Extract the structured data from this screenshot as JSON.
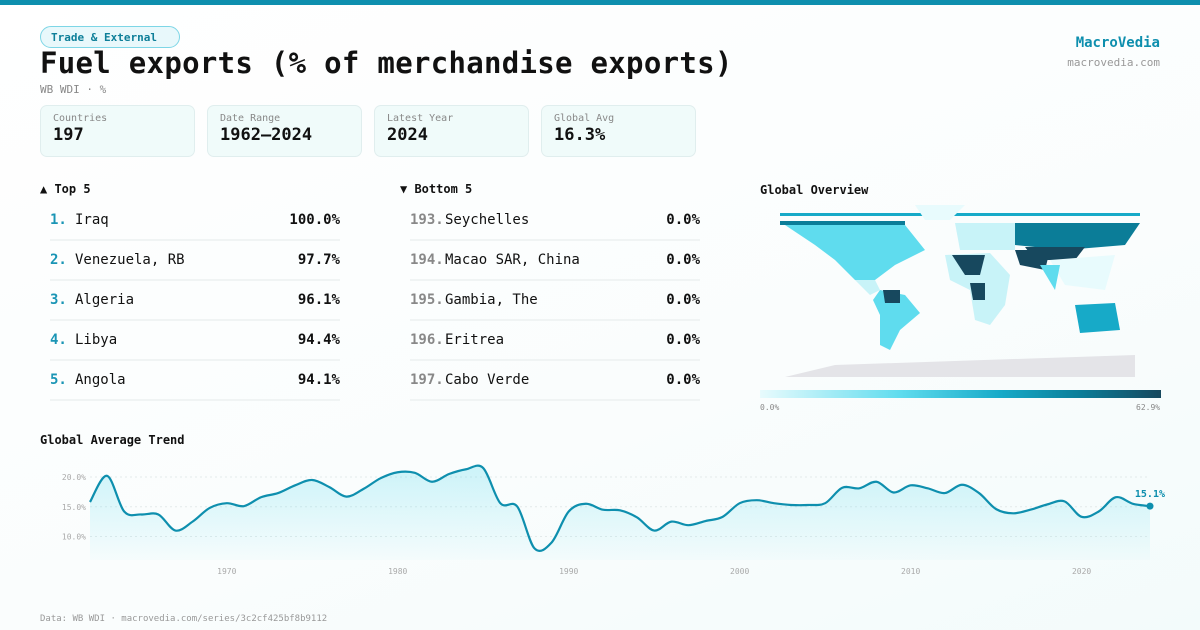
{
  "category_tag": "Trade & External",
  "title": "Fuel exports (% of merchandise exports)",
  "subtitle": "WB WDI · %",
  "brand": {
    "name": "MacroVedia",
    "url": "macrovedia.com"
  },
  "stats": [
    {
      "label": "Countries",
      "value": "197"
    },
    {
      "label": "Date Range",
      "value": "1962–2024"
    },
    {
      "label": "Latest Year",
      "value": "2024"
    },
    {
      "label": "Global Avg",
      "value": "16.3%"
    }
  ],
  "top5": {
    "heading": "▲ Top 5",
    "items": [
      {
        "rank": "1.",
        "name": "Iraq",
        "value": "100.0%"
      },
      {
        "rank": "2.",
        "name": "Venezuela, RB",
        "value": "97.7%"
      },
      {
        "rank": "3.",
        "name": "Algeria",
        "value": "96.1%"
      },
      {
        "rank": "4.",
        "name": "Libya",
        "value": "94.4%"
      },
      {
        "rank": "5.",
        "name": "Angola",
        "value": "94.1%"
      }
    ]
  },
  "bottom5": {
    "heading": "▼ Bottom 5",
    "items": [
      {
        "rank": "193.",
        "name": "Seychelles",
        "value": "0.0%"
      },
      {
        "rank": "194.",
        "name": "Macao SAR, China",
        "value": "0.0%"
      },
      {
        "rank": "195.",
        "name": "Gambia, The",
        "value": "0.0%"
      },
      {
        "rank": "196.",
        "name": "Eritrea",
        "value": "0.0%"
      },
      {
        "rank": "197.",
        "name": "Cabo Verde",
        "value": "0.0%"
      }
    ]
  },
  "map": {
    "heading": "Global Overview",
    "legend_min": "0.0%",
    "legend_max": "62.9%",
    "colors": [
      "#e8fbfd",
      "#5fdcee",
      "#17aac8",
      "#0b7d98",
      "#17485e"
    ],
    "no_data_color": "#e4e4e8"
  },
  "chart_data": {
    "type": "area",
    "title": "Global Average Trend",
    "xlabel": "",
    "ylabel": "",
    "xlim": [
      1962,
      2024
    ],
    "ylim": [
      6,
      22
    ],
    "x_ticks": [
      "1970",
      "1980",
      "1990",
      "2000",
      "2010",
      "2020"
    ],
    "y_ticks": [
      "20.0%",
      "15.0%",
      "10.0%"
    ],
    "grid": true,
    "color": "#0e8fae",
    "end_label": "15.1%",
    "x": [
      1962,
      1963,
      1964,
      1965,
      1966,
      1967,
      1968,
      1969,
      1970,
      1971,
      1972,
      1973,
      1974,
      1975,
      1976,
      1977,
      1978,
      1979,
      1980,
      1981,
      1982,
      1983,
      1984,
      1985,
      1986,
      1987,
      1988,
      1989,
      1990,
      1991,
      1992,
      1993,
      1994,
      1995,
      1996,
      1997,
      1998,
      1999,
      2000,
      2001,
      2002,
      2003,
      2004,
      2005,
      2006,
      2007,
      2008,
      2009,
      2010,
      2011,
      2012,
      2013,
      2014,
      2015,
      2016,
      2017,
      2018,
      2019,
      2020,
      2021,
      2022,
      2023,
      2024
    ],
    "values": [
      15.8,
      20.2,
      14.2,
      13.7,
      13.7,
      11.0,
      12.5,
      14.8,
      15.6,
      15.1,
      16.6,
      17.3,
      18.6,
      19.5,
      18.3,
      16.7,
      18.0,
      19.8,
      20.8,
      20.7,
      19.2,
      20.5,
      21.3,
      21.5,
      15.6,
      15.0,
      8.0,
      9.0,
      14.2,
      15.5,
      14.5,
      14.4,
      13.2,
      11.0,
      12.5,
      11.9,
      12.6,
      13.3,
      15.6,
      16.1,
      15.6,
      15.3,
      15.3,
      15.6,
      18.2,
      18.1,
      19.2,
      17.4,
      18.6,
      18.1,
      17.3,
      18.7,
      17.3,
      14.6,
      13.9,
      14.5,
      15.4,
      15.9,
      13.3,
      14.2,
      16.6,
      15.5,
      15.1
    ]
  },
  "footer": "Data: WB WDI · macrovedia.com/series/3c2cf425bf8b9112"
}
